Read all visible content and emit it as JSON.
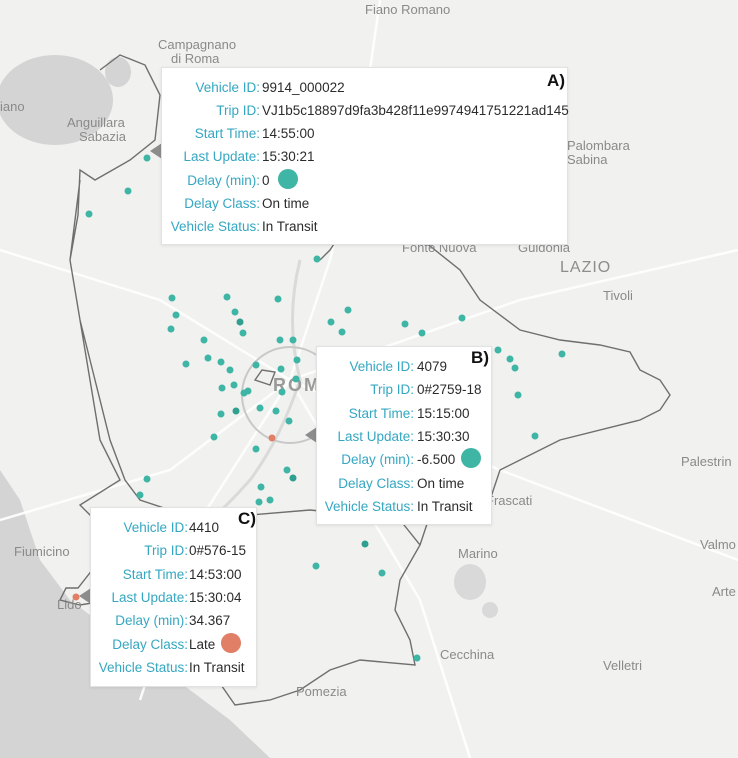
{
  "map": {
    "places": [
      {
        "name": "Fiano Romano"
      },
      {
        "name": "Campagnano"
      },
      {
        "name": "di Roma"
      },
      {
        "name": "iano"
      },
      {
        "name": "Anguillara"
      },
      {
        "name": "Sabazia"
      },
      {
        "name": "Palombara"
      },
      {
        "name": "Sabina"
      },
      {
        "name": "Fonte Nuova"
      },
      {
        "name": "Guidonia"
      },
      {
        "name": "LAZIO"
      },
      {
        "name": "Tivoli"
      },
      {
        "name": "ROMA"
      },
      {
        "name": "Palestrin"
      },
      {
        "name": "Frascati"
      },
      {
        "name": "Marino"
      },
      {
        "name": "Fiumicino"
      },
      {
        "name": "Lido"
      },
      {
        "name": "Valmo"
      },
      {
        "name": "Arte"
      },
      {
        "name": "Cecchina"
      },
      {
        "name": "Velletri"
      },
      {
        "name": "Pomezia"
      }
    ],
    "colors": {
      "on_time": "#3fb5a5",
      "late": "#e07e66",
      "label": "#35a7c2"
    }
  },
  "popups": [
    {
      "tag": "A)",
      "fields": [
        {
          "label": "Vehicle ID:",
          "value": "9914_000022"
        },
        {
          "label": "Trip ID:",
          "value": "VJ1b5c18897d9fa3b428f11e9974941751221ad145"
        },
        {
          "label": "Start Time:",
          "value": "14:55:00"
        },
        {
          "label": "Last Update:",
          "value": "15:30:21"
        },
        {
          "label": "Delay (min):",
          "value": "0"
        },
        {
          "label": "Delay Class:",
          "value": "On time"
        },
        {
          "label": "Vehicle Status:",
          "value": "In Transit"
        }
      ],
      "indicator_color": "#3fb5a5"
    },
    {
      "tag": "B)",
      "fields": [
        {
          "label": "Vehicle ID:",
          "value": "4079"
        },
        {
          "label": "Trip ID:",
          "value": "0#2759-18"
        },
        {
          "label": "Start Time:",
          "value": "15:15:00"
        },
        {
          "label": "Last Update:",
          "value": "15:30:30"
        },
        {
          "label": "Delay (min):",
          "value": "-6.500"
        },
        {
          "label": "Delay Class:",
          "value": "On time"
        },
        {
          "label": "Vehicle Status:",
          "value": "In Transit"
        }
      ],
      "indicator_color": "#3fb5a5"
    },
    {
      "tag": "C)",
      "fields": [
        {
          "label": "Vehicle ID:",
          "value": "4410"
        },
        {
          "label": "Trip ID:",
          "value": "0#576-15"
        },
        {
          "label": "Start Time:",
          "value": "14:53:00"
        },
        {
          "label": "Last Update:",
          "value": "15:30:04"
        },
        {
          "label": "Delay (min):",
          "value": "34.367"
        },
        {
          "label": "Delay Class:",
          "value": "Late"
        },
        {
          "label": "Vehicle Status:",
          "value": "In Transit"
        }
      ],
      "indicator_color": "#e07e66"
    }
  ]
}
